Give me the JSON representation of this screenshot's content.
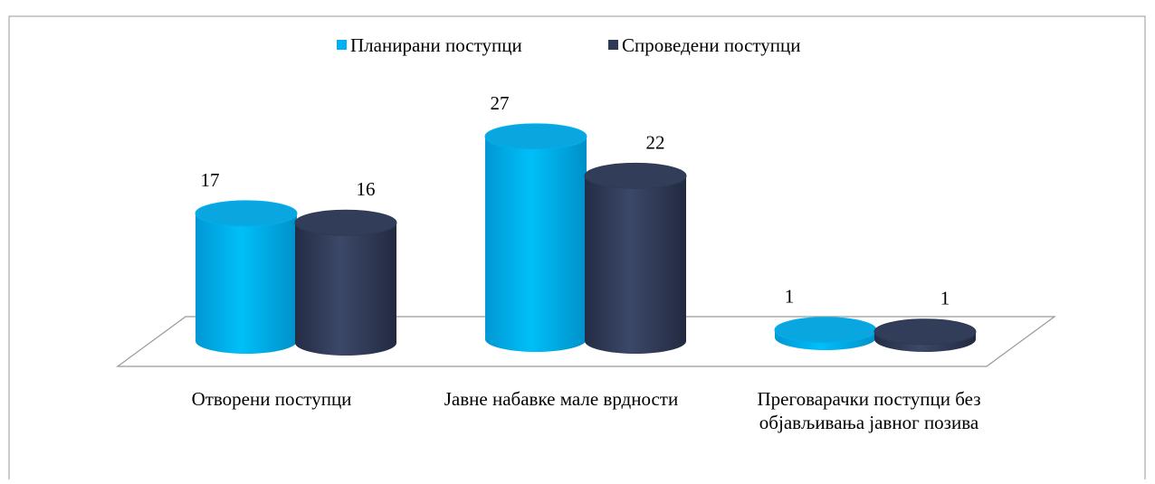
{
  "chart_data": {
    "type": "bar3d",
    "categories": [
      "Отворени поступци",
      "Јавне набавке мале врдности",
      "Преговарачки поступци без објављивања јавног позива"
    ],
    "series": [
      {
        "name": "Планирани поступци",
        "color": "#00b0f0",
        "values": [
          17,
          27,
          1
        ]
      },
      {
        "name": "Спроведени поступци",
        "color": "#2e3a55",
        "values": [
          16,
          22,
          1
        ]
      }
    ],
    "legend": "top"
  }
}
